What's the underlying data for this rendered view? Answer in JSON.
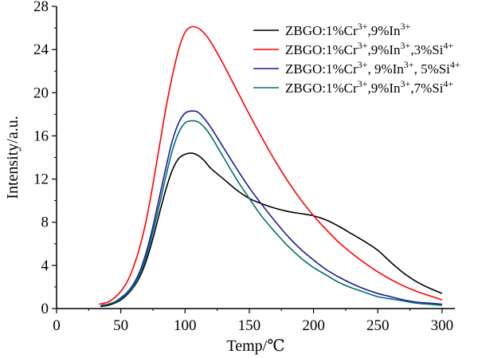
{
  "chart_data": {
    "type": "line",
    "title": "",
    "xlabel": "Temp/℃",
    "ylabel": "Intensity/a.u.",
    "xlim": [
      0,
      310
    ],
    "ylim": [
      0,
      28
    ],
    "xticks": [
      0,
      50,
      100,
      150,
      200,
      250,
      300
    ],
    "yticks": [
      0,
      4,
      8,
      12,
      16,
      20,
      24,
      28
    ],
    "grid": false,
    "legend_position": "top-right",
    "series": [
      {
        "name": "ZBGO:1%Cr3+,9%In3+",
        "legend_parts": [
          [
            "ZBGO:1%Cr",
            ""
          ],
          [
            "3+",
            "sup"
          ],
          [
            ",9%In",
            ""
          ],
          [
            "3+",
            "sup"
          ]
        ],
        "color": "#000000",
        "x": [
          34,
          40,
          45,
          50,
          55,
          60,
          65,
          70,
          75,
          80,
          85,
          90,
          95,
          100,
          105,
          110,
          115,
          120,
          130,
          140,
          150,
          160,
          170,
          180,
          190,
          200,
          210,
          220,
          230,
          240,
          250,
          260,
          270,
          280,
          290,
          300
        ],
        "y": [
          0.2,
          0.3,
          0.5,
          0.8,
          1.3,
          2.0,
          3.0,
          4.5,
          6.5,
          8.8,
          11.0,
          12.8,
          13.9,
          14.3,
          14.4,
          14.2,
          13.7,
          13.0,
          12.0,
          11.0,
          10.2,
          9.7,
          9.3,
          9.0,
          8.8,
          8.6,
          8.2,
          7.6,
          6.9,
          6.2,
          5.4,
          4.3,
          3.3,
          2.5,
          1.9,
          1.4
        ]
      },
      {
        "name": "ZBGO:1%Cr3+,9%In3+,3%Si4+",
        "legend_parts": [
          [
            "ZBGO:1%Cr",
            ""
          ],
          [
            "3+",
            "sup"
          ],
          [
            ",9%In",
            ""
          ],
          [
            "3+",
            "sup"
          ],
          [
            ",3%Si",
            ""
          ],
          [
            "4+",
            "sup"
          ]
        ],
        "color": "#ff0000",
        "x": [
          33,
          40,
          45,
          50,
          55,
          60,
          65,
          70,
          75,
          80,
          85,
          90,
          95,
          100,
          105,
          110,
          115,
          120,
          130,
          140,
          150,
          160,
          170,
          180,
          190,
          200,
          210,
          220,
          230,
          240,
          250,
          260,
          270,
          280,
          290,
          300
        ],
        "y": [
          0.4,
          0.6,
          1.0,
          1.6,
          2.5,
          3.9,
          5.8,
          8.3,
          11.5,
          15.0,
          18.5,
          21.5,
          24.0,
          25.6,
          26.1,
          26.0,
          25.5,
          24.7,
          22.6,
          20.3,
          18.0,
          15.8,
          13.7,
          11.8,
          10.1,
          8.6,
          7.3,
          6.1,
          5.1,
          4.2,
          3.4,
          2.7,
          2.1,
          1.6,
          1.2,
          0.8
        ]
      },
      {
        "name": "ZBGO:1%Cr3+, 9%In3+, 5%Si4+",
        "legend_parts": [
          [
            "ZBGO:1%Cr",
            ""
          ],
          [
            "3+",
            "sup"
          ],
          [
            ", 9%In",
            ""
          ],
          [
            "3+",
            "sup"
          ],
          [
            ", 5%Si",
            ""
          ],
          [
            "4+",
            "sup"
          ]
        ],
        "color": "#1a1aa0",
        "x": [
          35,
          40,
          45,
          50,
          55,
          60,
          65,
          70,
          75,
          80,
          85,
          90,
          95,
          100,
          105,
          110,
          115,
          120,
          130,
          140,
          150,
          160,
          170,
          180,
          190,
          200,
          210,
          220,
          230,
          240,
          250,
          260,
          270,
          280,
          290,
          300
        ],
        "y": [
          0.3,
          0.4,
          0.6,
          1.0,
          1.5,
          2.3,
          3.5,
          5.3,
          7.6,
          10.3,
          13.0,
          15.5,
          17.2,
          18.1,
          18.3,
          18.2,
          17.6,
          16.8,
          14.9,
          13.0,
          11.2,
          9.6,
          8.1,
          6.7,
          5.5,
          4.5,
          3.6,
          2.9,
          2.3,
          1.8,
          1.4,
          1.1,
          0.8,
          0.6,
          0.5,
          0.4
        ]
      },
      {
        "name": "ZBGO:1%Cr3+,9%In3+,7%Si4+",
        "legend_parts": [
          [
            "ZBGO:1%Cr",
            ""
          ],
          [
            "3+",
            "sup"
          ],
          [
            ",9%In",
            ""
          ],
          [
            "3+",
            "sup"
          ],
          [
            ",7%Si",
            ""
          ],
          [
            "4+",
            "sup"
          ]
        ],
        "color": "#007070",
        "x": [
          36,
          40,
          45,
          50,
          55,
          60,
          65,
          70,
          75,
          80,
          85,
          90,
          95,
          100,
          105,
          110,
          115,
          120,
          130,
          140,
          150,
          160,
          170,
          180,
          190,
          200,
          210,
          220,
          230,
          240,
          250,
          260,
          270,
          280,
          290,
          300
        ],
        "y": [
          0.3,
          0.4,
          0.6,
          0.9,
          1.4,
          2.1,
          3.2,
          4.9,
          7.1,
          9.6,
          12.2,
          14.6,
          16.3,
          17.2,
          17.4,
          17.3,
          16.8,
          16.0,
          14.0,
          12.0,
          10.2,
          8.5,
          7.1,
          5.8,
          4.7,
          3.8,
          3.1,
          2.4,
          1.9,
          1.5,
          1.1,
          0.9,
          0.7,
          0.5,
          0.4,
          0.3
        ]
      }
    ]
  }
}
